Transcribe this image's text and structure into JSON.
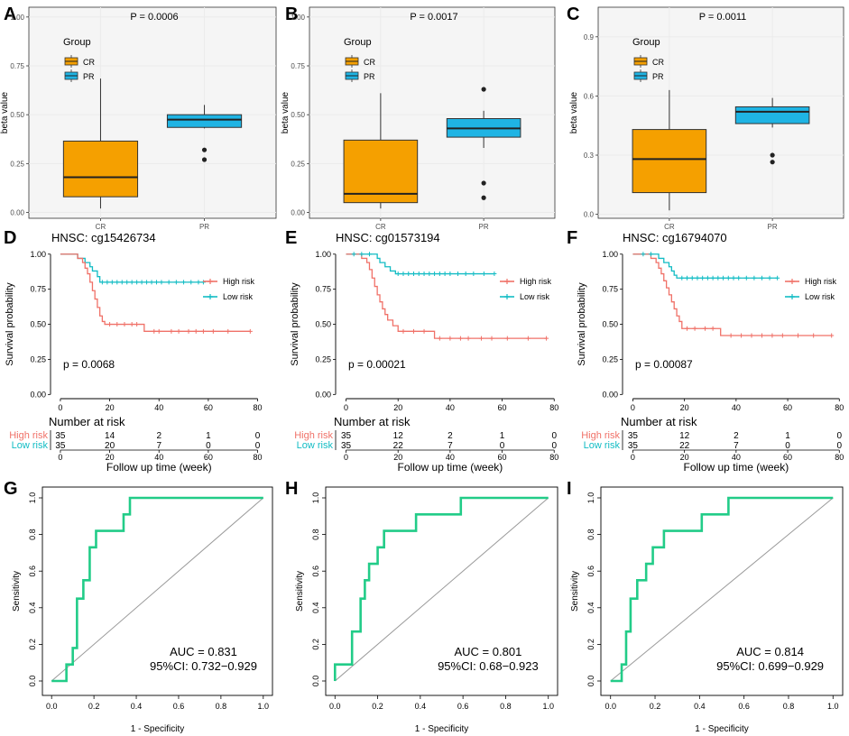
{
  "chart_data": {
    "letters": [
      "A",
      "B",
      "C",
      "D",
      "E",
      "F",
      "G",
      "H",
      "I"
    ],
    "boxplots": [
      {
        "type": "box",
        "title": "P = 0.0006",
        "ylabel": "beta value",
        "categories": [
          "CR",
          "PR"
        ],
        "yticks": [
          0,
          0.25,
          0.5,
          0.75,
          1.0
        ],
        "ytick_labels": [
          "0.00",
          "0.25",
          "0.50",
          "0.75",
          "1.00"
        ],
        "ylim": [
          -0.03,
          1.05
        ],
        "legend": {
          "title": "Group",
          "items": [
            "CR",
            "PR"
          ]
        },
        "boxes": [
          {
            "q1": 0.08,
            "median": 0.18,
            "q3": 0.365,
            "low": 0.02,
            "high": 0.685,
            "outliers": []
          },
          {
            "q1": 0.435,
            "median": 0.475,
            "q3": 0.5,
            "low": 0.43,
            "high": 0.55,
            "outliers": [
              0.32,
              0.27
            ]
          }
        ]
      },
      {
        "type": "box",
        "title": "P = 0.0017",
        "ylabel": "beta value",
        "categories": [
          "CR",
          "PR"
        ],
        "yticks": [
          0,
          0.25,
          0.5,
          0.75,
          1.0
        ],
        "ytick_labels": [
          "0.00",
          "0.25",
          "0.50",
          "0.75",
          "1.00"
        ],
        "ylim": [
          -0.03,
          1.05
        ],
        "legend": {
          "title": "Group",
          "items": [
            "CR",
            "PR"
          ]
        },
        "boxes": [
          {
            "q1": 0.05,
            "median": 0.095,
            "q3": 0.37,
            "low": 0.02,
            "high": 0.61,
            "outliers": []
          },
          {
            "q1": 0.385,
            "median": 0.43,
            "q3": 0.48,
            "low": 0.33,
            "high": 0.52,
            "outliers": [
              0.63,
              0.15,
              0.075
            ]
          }
        ]
      },
      {
        "type": "box",
        "title": "P = 0.0011",
        "ylabel": "beta value",
        "categories": [
          "CR",
          "PR"
        ],
        "yticks": [
          0,
          0.3,
          0.6,
          0.9
        ],
        "ytick_labels": [
          "0.0",
          "0.3",
          "0.6",
          "0.9"
        ],
        "ylim": [
          -0.02,
          1.05
        ],
        "legend": {
          "title": "Group",
          "items": [
            "CR",
            "PR"
          ]
        },
        "boxes": [
          {
            "q1": 0.11,
            "median": 0.28,
            "q3": 0.43,
            "low": 0.02,
            "high": 0.63,
            "outliers": []
          },
          {
            "q1": 0.46,
            "median": 0.52,
            "q3": 0.545,
            "low": 0.44,
            "high": 0.59,
            "outliers": [
              0.3,
              0.265
            ]
          }
        ]
      }
    ],
    "survival": [
      {
        "type": "line",
        "title": "HNSC: cg15426734",
        "ylabel": "Survival probability",
        "xlabel": "Follow up time (week)",
        "pvalue": "p = 0.0068",
        "xticks": [
          0,
          20,
          40,
          60,
          80
        ],
        "yticks": [
          0,
          0.25,
          0.5,
          0.75,
          1.0
        ],
        "ytick_labels": [
          "0.00",
          "0.25",
          "0.50",
          "0.75",
          "1.00"
        ],
        "xlim": [
          -4,
          82
        ],
        "ylim": [
          -0.03,
          1.05
        ],
        "legend": [
          "High risk",
          "Low risk"
        ],
        "high": [
          [
            0,
            1
          ],
          [
            6,
            1
          ],
          [
            7,
            0.97
          ],
          [
            9,
            0.94
          ],
          [
            10,
            0.9
          ],
          [
            11,
            0.86
          ],
          [
            12,
            0.8
          ],
          [
            13,
            0.74
          ],
          [
            14,
            0.68
          ],
          [
            15,
            0.62
          ],
          [
            16,
            0.56
          ],
          [
            17,
            0.52
          ],
          [
            18,
            0.5
          ],
          [
            33,
            0.5
          ],
          [
            34,
            0.45
          ],
          [
            77,
            0.45
          ]
        ],
        "high_censor": [
          20,
          23,
          26,
          29,
          31,
          38,
          40,
          45,
          48,
          52,
          55,
          58,
          62,
          68,
          77
        ],
        "low": [
          [
            0,
            1
          ],
          [
            6,
            1
          ],
          [
            7,
            0.97
          ],
          [
            10,
            0.94
          ],
          [
            12,
            0.91
          ],
          [
            13,
            0.88
          ],
          [
            15,
            0.84
          ],
          [
            16,
            0.8
          ],
          [
            58,
            0.8
          ]
        ],
        "low_censor": [
          17,
          19,
          21,
          23,
          25,
          27,
          29,
          31,
          33,
          35,
          37,
          39,
          41,
          44,
          47,
          50,
          53,
          56,
          58
        ],
        "risk_title": "Number at risk",
        "risk_labels": [
          "High risk",
          "Low risk"
        ],
        "risk_high": [
          "35",
          "14",
          "2",
          "1",
          "0"
        ],
        "risk_low": [
          "35",
          "20",
          "7",
          "0",
          "0"
        ]
      },
      {
        "type": "line",
        "title": "HNSC: cg01573194",
        "ylabel": "Survival probability",
        "xlabel": "Follow up time (week)",
        "pvalue": "p = 0.00021",
        "xticks": [
          0,
          20,
          40,
          60,
          80
        ],
        "yticks": [
          0,
          0.25,
          0.5,
          0.75,
          1.0
        ],
        "ytick_labels": [
          "0.00",
          "0.25",
          "0.50",
          "0.75",
          "1.00"
        ],
        "xlim": [
          -4,
          82
        ],
        "ylim": [
          -0.03,
          1.05
        ],
        "legend": [
          "High risk",
          "Low risk"
        ],
        "high": [
          [
            0,
            1
          ],
          [
            5,
            1
          ],
          [
            6,
            0.97
          ],
          [
            8,
            0.94
          ],
          [
            9,
            0.89
          ],
          [
            10,
            0.83
          ],
          [
            11,
            0.77
          ],
          [
            12,
            0.71
          ],
          [
            13,
            0.66
          ],
          [
            14,
            0.61
          ],
          [
            15,
            0.57
          ],
          [
            16,
            0.53
          ],
          [
            18,
            0.49
          ],
          [
            20,
            0.45
          ],
          [
            33,
            0.45
          ],
          [
            34,
            0.4
          ],
          [
            77,
            0.4
          ]
        ],
        "high_censor": [
          22,
          26,
          30,
          36,
          40,
          44,
          47,
          52,
          56,
          62,
          70,
          77
        ],
        "low": [
          [
            0,
            1
          ],
          [
            11,
            1
          ],
          [
            12,
            0.97
          ],
          [
            13,
            0.94
          ],
          [
            15,
            0.91
          ],
          [
            17,
            0.88
          ],
          [
            19,
            0.86
          ],
          [
            57,
            0.86
          ]
        ],
        "low_censor": [
          3,
          6,
          9,
          20,
          22,
          24,
          26,
          28,
          30,
          32,
          34,
          36,
          38,
          40,
          43,
          46,
          49,
          53,
          57
        ],
        "risk_title": "Number at risk",
        "risk_labels": [
          "High risk",
          "Low risk"
        ],
        "risk_high": [
          "35",
          "12",
          "2",
          "1",
          "0"
        ],
        "risk_low": [
          "35",
          "22",
          "7",
          "0",
          "0"
        ]
      },
      {
        "type": "line",
        "title": "HNSC: cg16794070",
        "ylabel": "Survival probability",
        "xlabel": "Follow up time (week)",
        "pvalue": "p = 0.00087",
        "xticks": [
          0,
          20,
          40,
          60,
          80
        ],
        "yticks": [
          0,
          0.25,
          0.5,
          0.75,
          1.0
        ],
        "ytick_labels": [
          "0.00",
          "0.25",
          "0.50",
          "0.75",
          "1.00"
        ],
        "xlim": [
          -4,
          82
        ],
        "ylim": [
          -0.03,
          1.05
        ],
        "legend": [
          "High risk",
          "Low risk"
        ],
        "high": [
          [
            0,
            1
          ],
          [
            6,
            1
          ],
          [
            7,
            0.97
          ],
          [
            9,
            0.94
          ],
          [
            10,
            0.9
          ],
          [
            11,
            0.86
          ],
          [
            12,
            0.81
          ],
          [
            13,
            0.76
          ],
          [
            14,
            0.71
          ],
          [
            15,
            0.66
          ],
          [
            16,
            0.61
          ],
          [
            17,
            0.56
          ],
          [
            18,
            0.52
          ],
          [
            19,
            0.47
          ],
          [
            33,
            0.47
          ],
          [
            34,
            0.42
          ],
          [
            77,
            0.42
          ]
        ],
        "high_censor": [
          21,
          24,
          28,
          31,
          38,
          42,
          46,
          50,
          54,
          58,
          64,
          70,
          77
        ],
        "low": [
          [
            0,
            1
          ],
          [
            9,
            1
          ],
          [
            10,
            0.97
          ],
          [
            12,
            0.94
          ],
          [
            14,
            0.91
          ],
          [
            15,
            0.88
          ],
          [
            16,
            0.85
          ],
          [
            17,
            0.83
          ],
          [
            56,
            0.83
          ]
        ],
        "low_censor": [
          4,
          7,
          19,
          21,
          23,
          25,
          27,
          29,
          31,
          33,
          35,
          37,
          39,
          41,
          44,
          47,
          50,
          53,
          56
        ],
        "risk_title": "Number at risk",
        "risk_labels": [
          "High risk",
          "Low risk"
        ],
        "risk_high": [
          "35",
          "12",
          "2",
          "1",
          "0"
        ],
        "risk_low": [
          "35",
          "22",
          "7",
          "0",
          "0"
        ]
      }
    ],
    "roc": [
      {
        "type": "line",
        "xlabel": "1 - Specificity",
        "ylabel": "Sensitivity",
        "auc_text": "AUC = 0.831",
        "ci_text": "95%CI: 0.732−0.929",
        "ticks": [
          0,
          0.2,
          0.4,
          0.6,
          0.8,
          1.0
        ],
        "tick_labels": [
          "0.0",
          "0.2",
          "0.4",
          "0.6",
          "0.8",
          "1.0"
        ],
        "points": [
          [
            0,
            0
          ],
          [
            0.07,
            0
          ],
          [
            0.07,
            0.09
          ],
          [
            0.1,
            0.09
          ],
          [
            0.1,
            0.18
          ],
          [
            0.12,
            0.18
          ],
          [
            0.12,
            0.45
          ],
          [
            0.15,
            0.45
          ],
          [
            0.15,
            0.55
          ],
          [
            0.18,
            0.55
          ],
          [
            0.18,
            0.73
          ],
          [
            0.21,
            0.73
          ],
          [
            0.21,
            0.82
          ],
          [
            0.34,
            0.82
          ],
          [
            0.34,
            0.91
          ],
          [
            0.37,
            0.91
          ],
          [
            0.37,
            1.0
          ],
          [
            1,
            1
          ]
        ]
      },
      {
        "type": "line",
        "xlabel": "1 - Specificity",
        "ylabel": "Sensitivity",
        "auc_text": "AUC = 0.801",
        "ci_text": "95%CI: 0.68−0.923",
        "ticks": [
          0,
          0.2,
          0.4,
          0.6,
          0.8,
          1.0
        ],
        "tick_labels": [
          "0.0",
          "0.2",
          "0.4",
          "0.6",
          "0.8",
          "1.0"
        ],
        "points": [
          [
            0,
            0
          ],
          [
            0,
            0.09
          ],
          [
            0.08,
            0.09
          ],
          [
            0.08,
            0.27
          ],
          [
            0.12,
            0.27
          ],
          [
            0.12,
            0.45
          ],
          [
            0.14,
            0.45
          ],
          [
            0.14,
            0.55
          ],
          [
            0.16,
            0.55
          ],
          [
            0.16,
            0.64
          ],
          [
            0.2,
            0.64
          ],
          [
            0.2,
            0.73
          ],
          [
            0.23,
            0.73
          ],
          [
            0.23,
            0.82
          ],
          [
            0.38,
            0.82
          ],
          [
            0.38,
            0.91
          ],
          [
            0.59,
            0.91
          ],
          [
            0.59,
            1.0
          ],
          [
            1,
            1
          ]
        ]
      },
      {
        "type": "line",
        "xlabel": "1 - Specificity",
        "ylabel": "Sensitivity",
        "auc_text": "AUC = 0.814",
        "ci_text": "95%CI: 0.699−0.929",
        "ticks": [
          0,
          0.2,
          0.4,
          0.6,
          0.8,
          1.0
        ],
        "tick_labels": [
          "0.0",
          "0.2",
          "0.4",
          "0.6",
          "0.8",
          "1.0"
        ],
        "points": [
          [
            0,
            0
          ],
          [
            0.05,
            0
          ],
          [
            0.05,
            0.09
          ],
          [
            0.07,
            0.09
          ],
          [
            0.07,
            0.27
          ],
          [
            0.09,
            0.27
          ],
          [
            0.09,
            0.45
          ],
          [
            0.12,
            0.45
          ],
          [
            0.12,
            0.55
          ],
          [
            0.16,
            0.55
          ],
          [
            0.16,
            0.64
          ],
          [
            0.19,
            0.64
          ],
          [
            0.19,
            0.73
          ],
          [
            0.24,
            0.73
          ],
          [
            0.24,
            0.82
          ],
          [
            0.41,
            0.82
          ],
          [
            0.41,
            0.91
          ],
          [
            0.53,
            0.91
          ],
          [
            0.53,
            1.0
          ],
          [
            1,
            1
          ]
        ]
      }
    ]
  },
  "colors": {
    "cr": "#f5a000",
    "pr": "#1fb4e4",
    "high": "#f07168",
    "low": "#12bcc4",
    "roc": "#22cc88",
    "grid": "#ebebeb",
    "panel": "#f5f5f5"
  }
}
